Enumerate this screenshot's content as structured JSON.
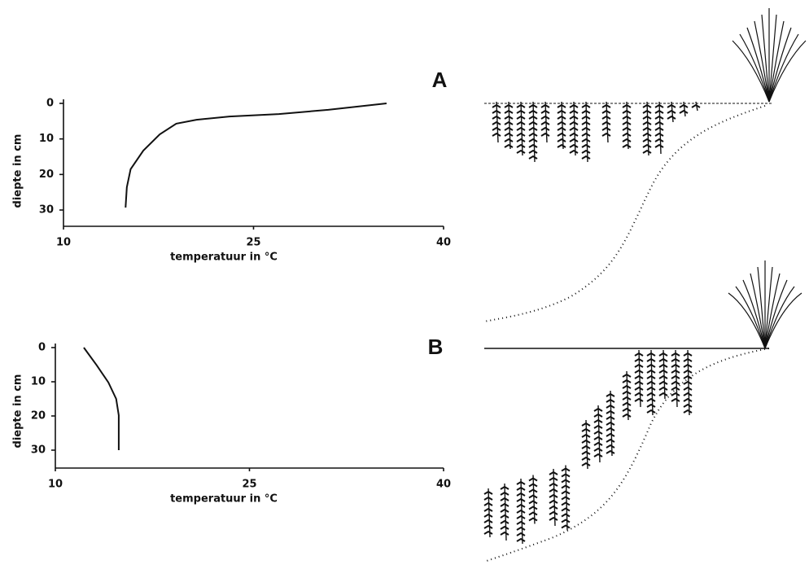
{
  "chart_data": [
    {
      "type": "line",
      "title": "A",
      "xlabel": "temperatuur in °C",
      "ylabel": "diepte in cm",
      "x": [
        14.9,
        15.0,
        15.3,
        16.3,
        17.6,
        18.9,
        20.5,
        23.1,
        27.0,
        30.9,
        35.5
      ],
      "values": [
        29.3,
        23.6,
        18.5,
        13.3,
        8.7,
        5.7,
        4.6,
        3.7,
        3.0,
        1.8,
        0
      ],
      "color": "#111111",
      "xlim": [
        10,
        40
      ],
      "ylim": [
        0,
        35
      ],
      "y_inverted": true,
      "xticks": [
        10,
        25,
        40
      ],
      "yticks": [
        0,
        10,
        20,
        30
      ]
    },
    {
      "type": "line",
      "title": "B",
      "xlabel": "temperatuur in °C",
      "ylabel": "diepte in cm",
      "x": [
        12.2,
        13.2,
        14.1,
        14.7,
        14.9,
        14.9,
        14.9
      ],
      "values": [
        0,
        5.2,
        10.2,
        15,
        19.8,
        24.5,
        30
      ],
      "color": "#111111",
      "xlim": [
        10,
        40
      ],
      "ylim": [
        0,
        35
      ],
      "y_inverted": true,
      "xticks": [
        10,
        25,
        40
      ],
      "yticks": [
        0,
        10,
        20,
        30
      ]
    }
  ]
}
